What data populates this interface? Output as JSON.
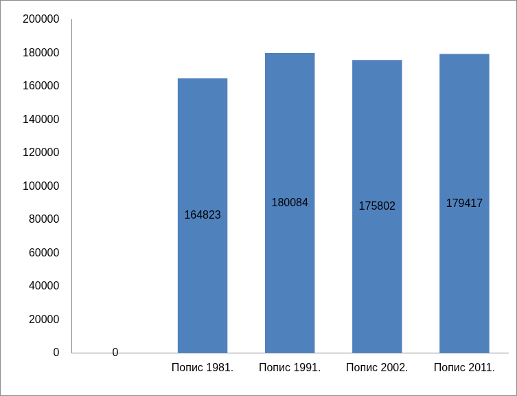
{
  "chart_data": {
    "type": "bar",
    "categories": [
      null,
      "Попис 1981.",
      "Попис 1991.",
      "Попис 2002.",
      "Попис 2011."
    ],
    "values": [
      0,
      164823,
      180084,
      175802,
      179417
    ],
    "color": "#4f81bd",
    "ylim": [
      0,
      200000
    ],
    "yticks": [
      0,
      20000,
      40000,
      60000,
      80000,
      100000,
      120000,
      140000,
      160000,
      180000,
      200000
    ],
    "grid": false,
    "data_labels": true
  }
}
